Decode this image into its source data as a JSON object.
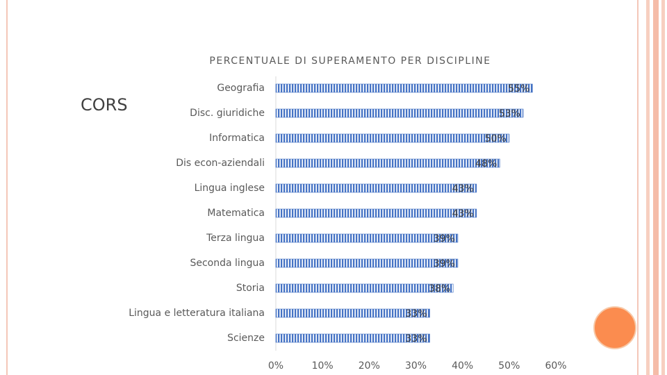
{
  "slide_title": "CORS",
  "chart_data": {
    "type": "hbar",
    "title": "PERCENTUALE DI SUPERAMENTO PER DISCIPLINE",
    "categories": [
      "Geografia",
      "Disc. giuridiche",
      "Informatica",
      "Dis econ-aziendali",
      "Lingua inglese",
      "Matematica",
      "Terza lingua",
      "Seconda lingua",
      "Storia",
      "Lingua e letteratura italiana",
      "Scienze"
    ],
    "values": [
      55,
      53,
      50,
      48,
      43,
      43,
      39,
      39,
      38,
      33,
      33
    ],
    "value_labels": [
      "55%",
      "53%",
      "50%",
      "48%",
      "43%",
      "43%",
      "39%",
      "39%",
      "38%",
      "33%",
      "33%"
    ],
    "color": "#4472c4",
    "xlim": [
      0,
      60
    ],
    "xticks": [
      {
        "value": 0,
        "label": "0%"
      },
      {
        "value": 10,
        "label": "10%"
      },
      {
        "value": 20,
        "label": "20%"
      },
      {
        "value": 30,
        "label": "30%"
      },
      {
        "value": 40,
        "label": "40%"
      },
      {
        "value": 50,
        "label": "50%"
      },
      {
        "value": 60,
        "label": "60%"
      }
    ]
  }
}
